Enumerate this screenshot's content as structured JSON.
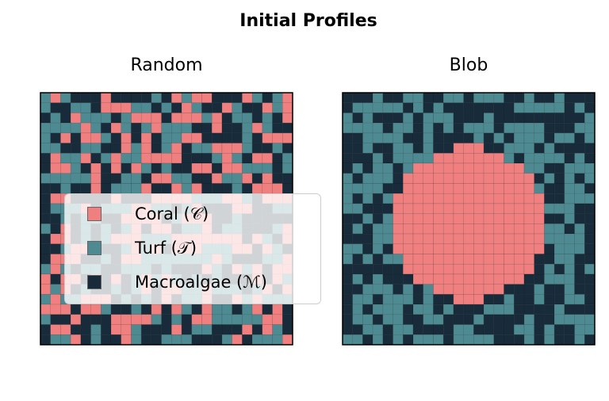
{
  "title": "Initial Profiles",
  "colors": {
    "coral": "#F08080",
    "turf": "#4E8A91",
    "macroalgae": "#172B3A"
  },
  "chart_data": [
    {
      "type": "heatmap",
      "title": "Random",
      "grid_size": [
        25,
        25
      ],
      "categories": [
        "Coral (C)",
        "Turf (T)",
        "Macroalgae (M)"
      ],
      "pattern": "random"
    },
    {
      "type": "heatmap",
      "title": "Blob",
      "grid_size": [
        25,
        25
      ],
      "categories": [
        "Coral (C)",
        "Turf (T)",
        "Macroalgae (M)"
      ],
      "pattern": "central coral disc surrounded by random turf and macroalgae"
    }
  ],
  "legend": {
    "placement": "center-left",
    "entries": [
      {
        "label": "Coral (𝒞)",
        "color": "#F08080"
      },
      {
        "label": "Turf (𝒯)",
        "color": "#4E8A91"
      },
      {
        "label": "Macroalgae (ℳ)",
        "color": "#172B3A"
      }
    ]
  }
}
